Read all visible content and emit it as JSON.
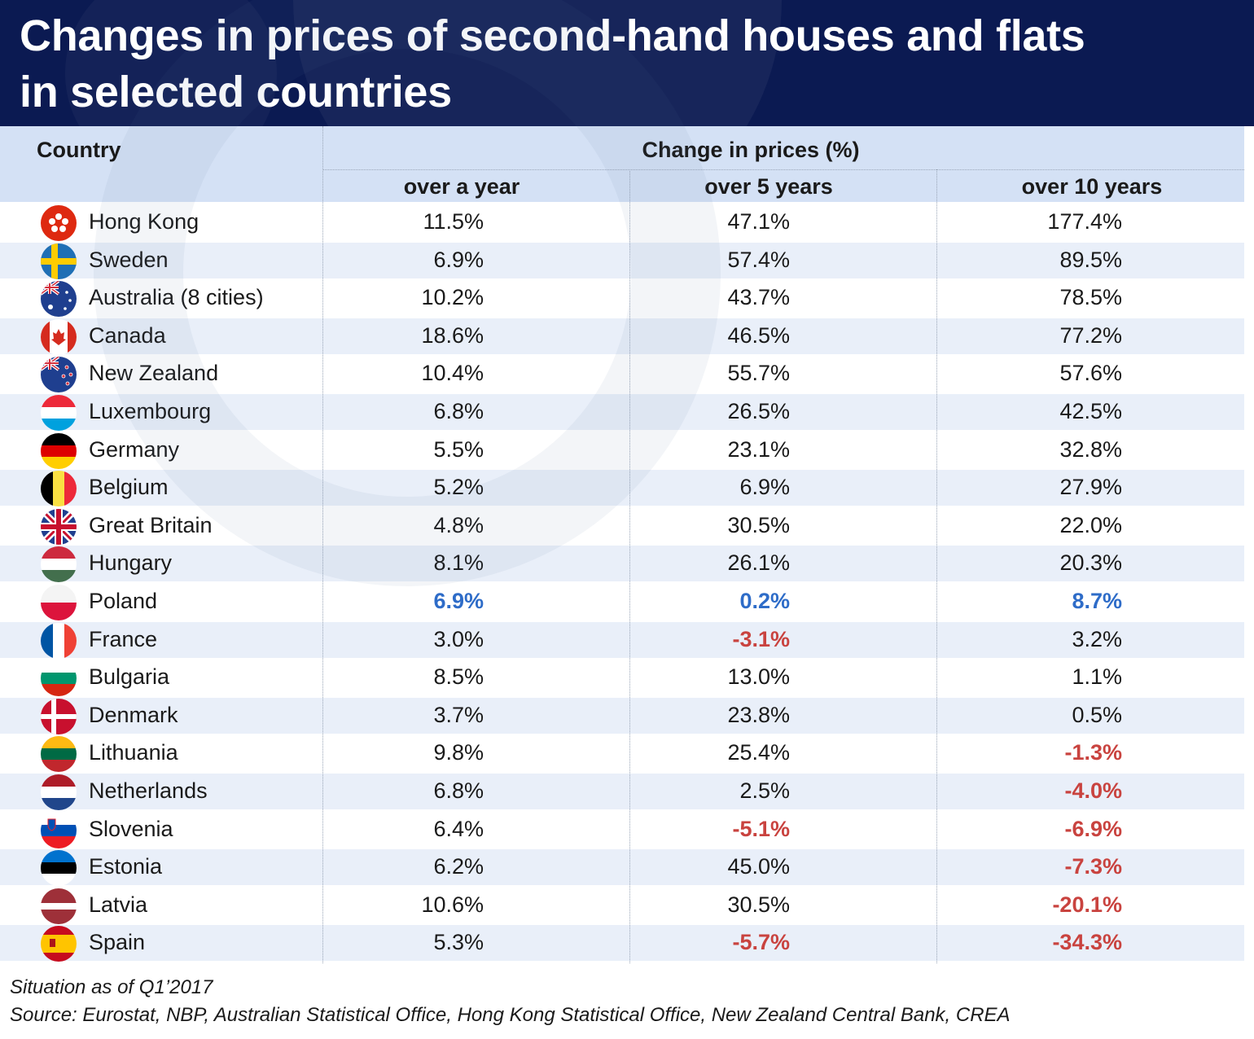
{
  "title_line1": "Changes in prices of second-hand houses and flats",
  "title_line2": "in selected countries",
  "chart_data": {
    "type": "table",
    "title": "Changes in prices of second-hand houses and flats in selected countries",
    "group_header": "Change in prices (%)",
    "columns": [
      "Country",
      "over a year",
      "over 5 years",
      "over 10 years"
    ],
    "rows": [
      {
        "country": "Hong Kong",
        "flag": "hong-kong-flag-icon",
        "values": [
          "11.5%",
          "47.1%",
          "177.4%"
        ]
      },
      {
        "country": "Sweden",
        "flag": "sweden-flag-icon",
        "values": [
          "6.9%",
          "57.4%",
          "89.5%"
        ]
      },
      {
        "country": "Australia (8 cities)",
        "flag": "australia-flag-icon",
        "values": [
          "10.2%",
          "43.7%",
          "78.5%"
        ]
      },
      {
        "country": "Canada",
        "flag": "canada-flag-icon",
        "values": [
          "18.6%",
          "46.5%",
          "77.2%"
        ]
      },
      {
        "country": "New Zealand",
        "flag": "new-zealand-flag-icon",
        "values": [
          "10.4%",
          "55.7%",
          "57.6%"
        ]
      },
      {
        "country": "Luxembourg",
        "flag": "luxembourg-flag-icon",
        "values": [
          "6.8%",
          "26.5%",
          "42.5%"
        ]
      },
      {
        "country": "Germany",
        "flag": "germany-flag-icon",
        "values": [
          "5.5%",
          "23.1%",
          "32.8%"
        ]
      },
      {
        "country": "Belgium",
        "flag": "belgium-flag-icon",
        "values": [
          "5.2%",
          "6.9%",
          "27.9%"
        ]
      },
      {
        "country": "Great Britain",
        "flag": "great-britain-flag-icon",
        "values": [
          "4.8%",
          "30.5%",
          "22.0%"
        ]
      },
      {
        "country": "Hungary",
        "flag": "hungary-flag-icon",
        "values": [
          "8.1%",
          "26.1%",
          "20.3%"
        ]
      },
      {
        "country": "Poland",
        "flag": "poland-flag-icon",
        "highlight": true,
        "values": [
          "6.9%",
          "0.2%",
          "8.7%"
        ]
      },
      {
        "country": "France",
        "flag": "france-flag-icon",
        "values": [
          "3.0%",
          "-3.1%",
          "3.2%"
        ]
      },
      {
        "country": "Bulgaria",
        "flag": "bulgaria-flag-icon",
        "values": [
          "8.5%",
          "13.0%",
          "1.1%"
        ]
      },
      {
        "country": "Denmark",
        "flag": "denmark-flag-icon",
        "values": [
          "3.7%",
          "23.8%",
          "0.5%"
        ]
      },
      {
        "country": "Lithuania",
        "flag": "lithuania-flag-icon",
        "values": [
          "9.8%",
          "25.4%",
          "-1.3%"
        ]
      },
      {
        "country": "Netherlands",
        "flag": "netherlands-flag-icon",
        "values": [
          "6.8%",
          "2.5%",
          "-4.0%"
        ]
      },
      {
        "country": "Slovenia",
        "flag": "slovenia-flag-icon",
        "values": [
          "6.4%",
          "-5.1%",
          "-6.9%"
        ]
      },
      {
        "country": "Estonia",
        "flag": "estonia-flag-icon",
        "values": [
          "6.2%",
          "45.0%",
          "-7.3%"
        ]
      },
      {
        "country": "Latvia",
        "flag": "latvia-flag-icon",
        "values": [
          "10.6%",
          "30.5%",
          "-20.1%"
        ]
      },
      {
        "country": "Spain",
        "flag": "spain-flag-icon",
        "values": [
          "5.3%",
          "-5.7%",
          "-34.3%"
        ]
      }
    ]
  },
  "footer": {
    "note": "Situation as of Q1’2017",
    "source": "Source: Eurostat, NBP, Australian Statistical Office, Hong Kong Statistical Office, New Zealand Central Bank, CREA"
  },
  "colors": {
    "header_bg": "#0b1a52",
    "header_band": "#d4e1f5",
    "row_alt": "#e9eff9",
    "negative": "#c9433f",
    "highlight": "#2e6cc8"
  }
}
